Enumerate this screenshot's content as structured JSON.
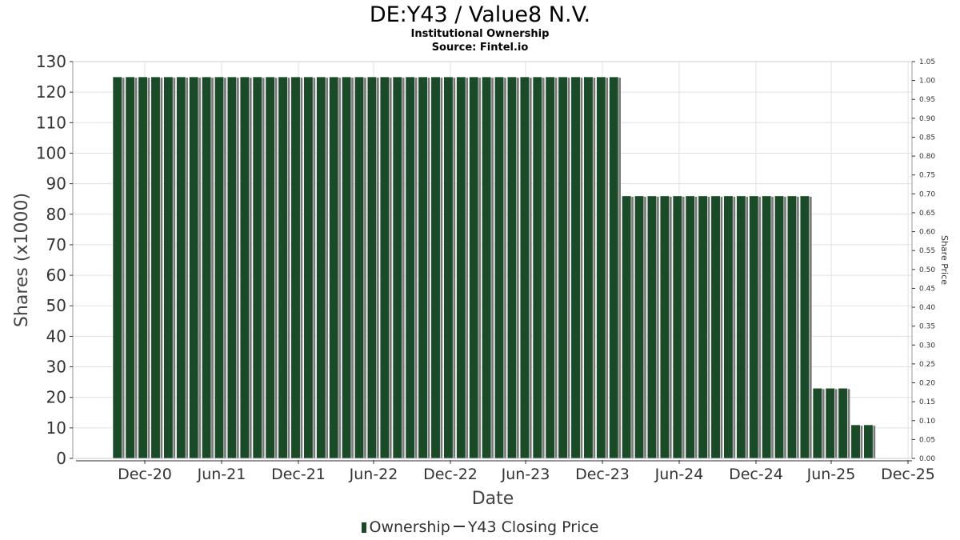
{
  "title": "DE:Y43 / Value8 N.V.",
  "subtitle": "Institutional Ownership",
  "source": "Source: Fintel.io",
  "legend": {
    "ownership_label": "Ownership",
    "price_label": "Y43 Closing Price"
  },
  "colors": {
    "bar": "#1a4a28",
    "bar_shadow": "#7a7a7a",
    "grid": "#e0e0e0",
    "axis": "#333333"
  },
  "chart_data": {
    "type": "bar",
    "xlabel": "Date",
    "ylabel": "Shares (x1000)",
    "y2label": "Share Price",
    "ylim": [
      0,
      130
    ],
    "y2lim": [
      0,
      1.05
    ],
    "yticks": [
      0,
      10,
      20,
      30,
      40,
      50,
      60,
      70,
      80,
      90,
      100,
      110,
      120,
      130
    ],
    "y2ticks": [
      "0.00",
      "0.05",
      "0.10",
      "0.15",
      "0.20",
      "0.25",
      "0.30",
      "0.35",
      "0.40",
      "0.45",
      "0.50",
      "0.55",
      "0.60",
      "0.65",
      "0.70",
      "0.75",
      "0.80",
      "0.85",
      "0.90",
      "0.95",
      "1.00",
      "1.05"
    ],
    "xticks": [
      "Dec-20",
      "Jun-21",
      "Dec-21",
      "Jun-22",
      "Dec-22",
      "Jun-23",
      "Dec-23",
      "Jun-24",
      "Dec-24",
      "Jun-25",
      "Dec-25"
    ],
    "grid": true,
    "legend_position": "bottom",
    "series": [
      {
        "name": "Ownership",
        "segments": [
          {
            "count": 40,
            "value": 125
          },
          {
            "count": 15,
            "value": 86
          },
          {
            "count": 3,
            "value": 23
          },
          {
            "count": 2,
            "value": 11
          }
        ]
      }
    ]
  }
}
